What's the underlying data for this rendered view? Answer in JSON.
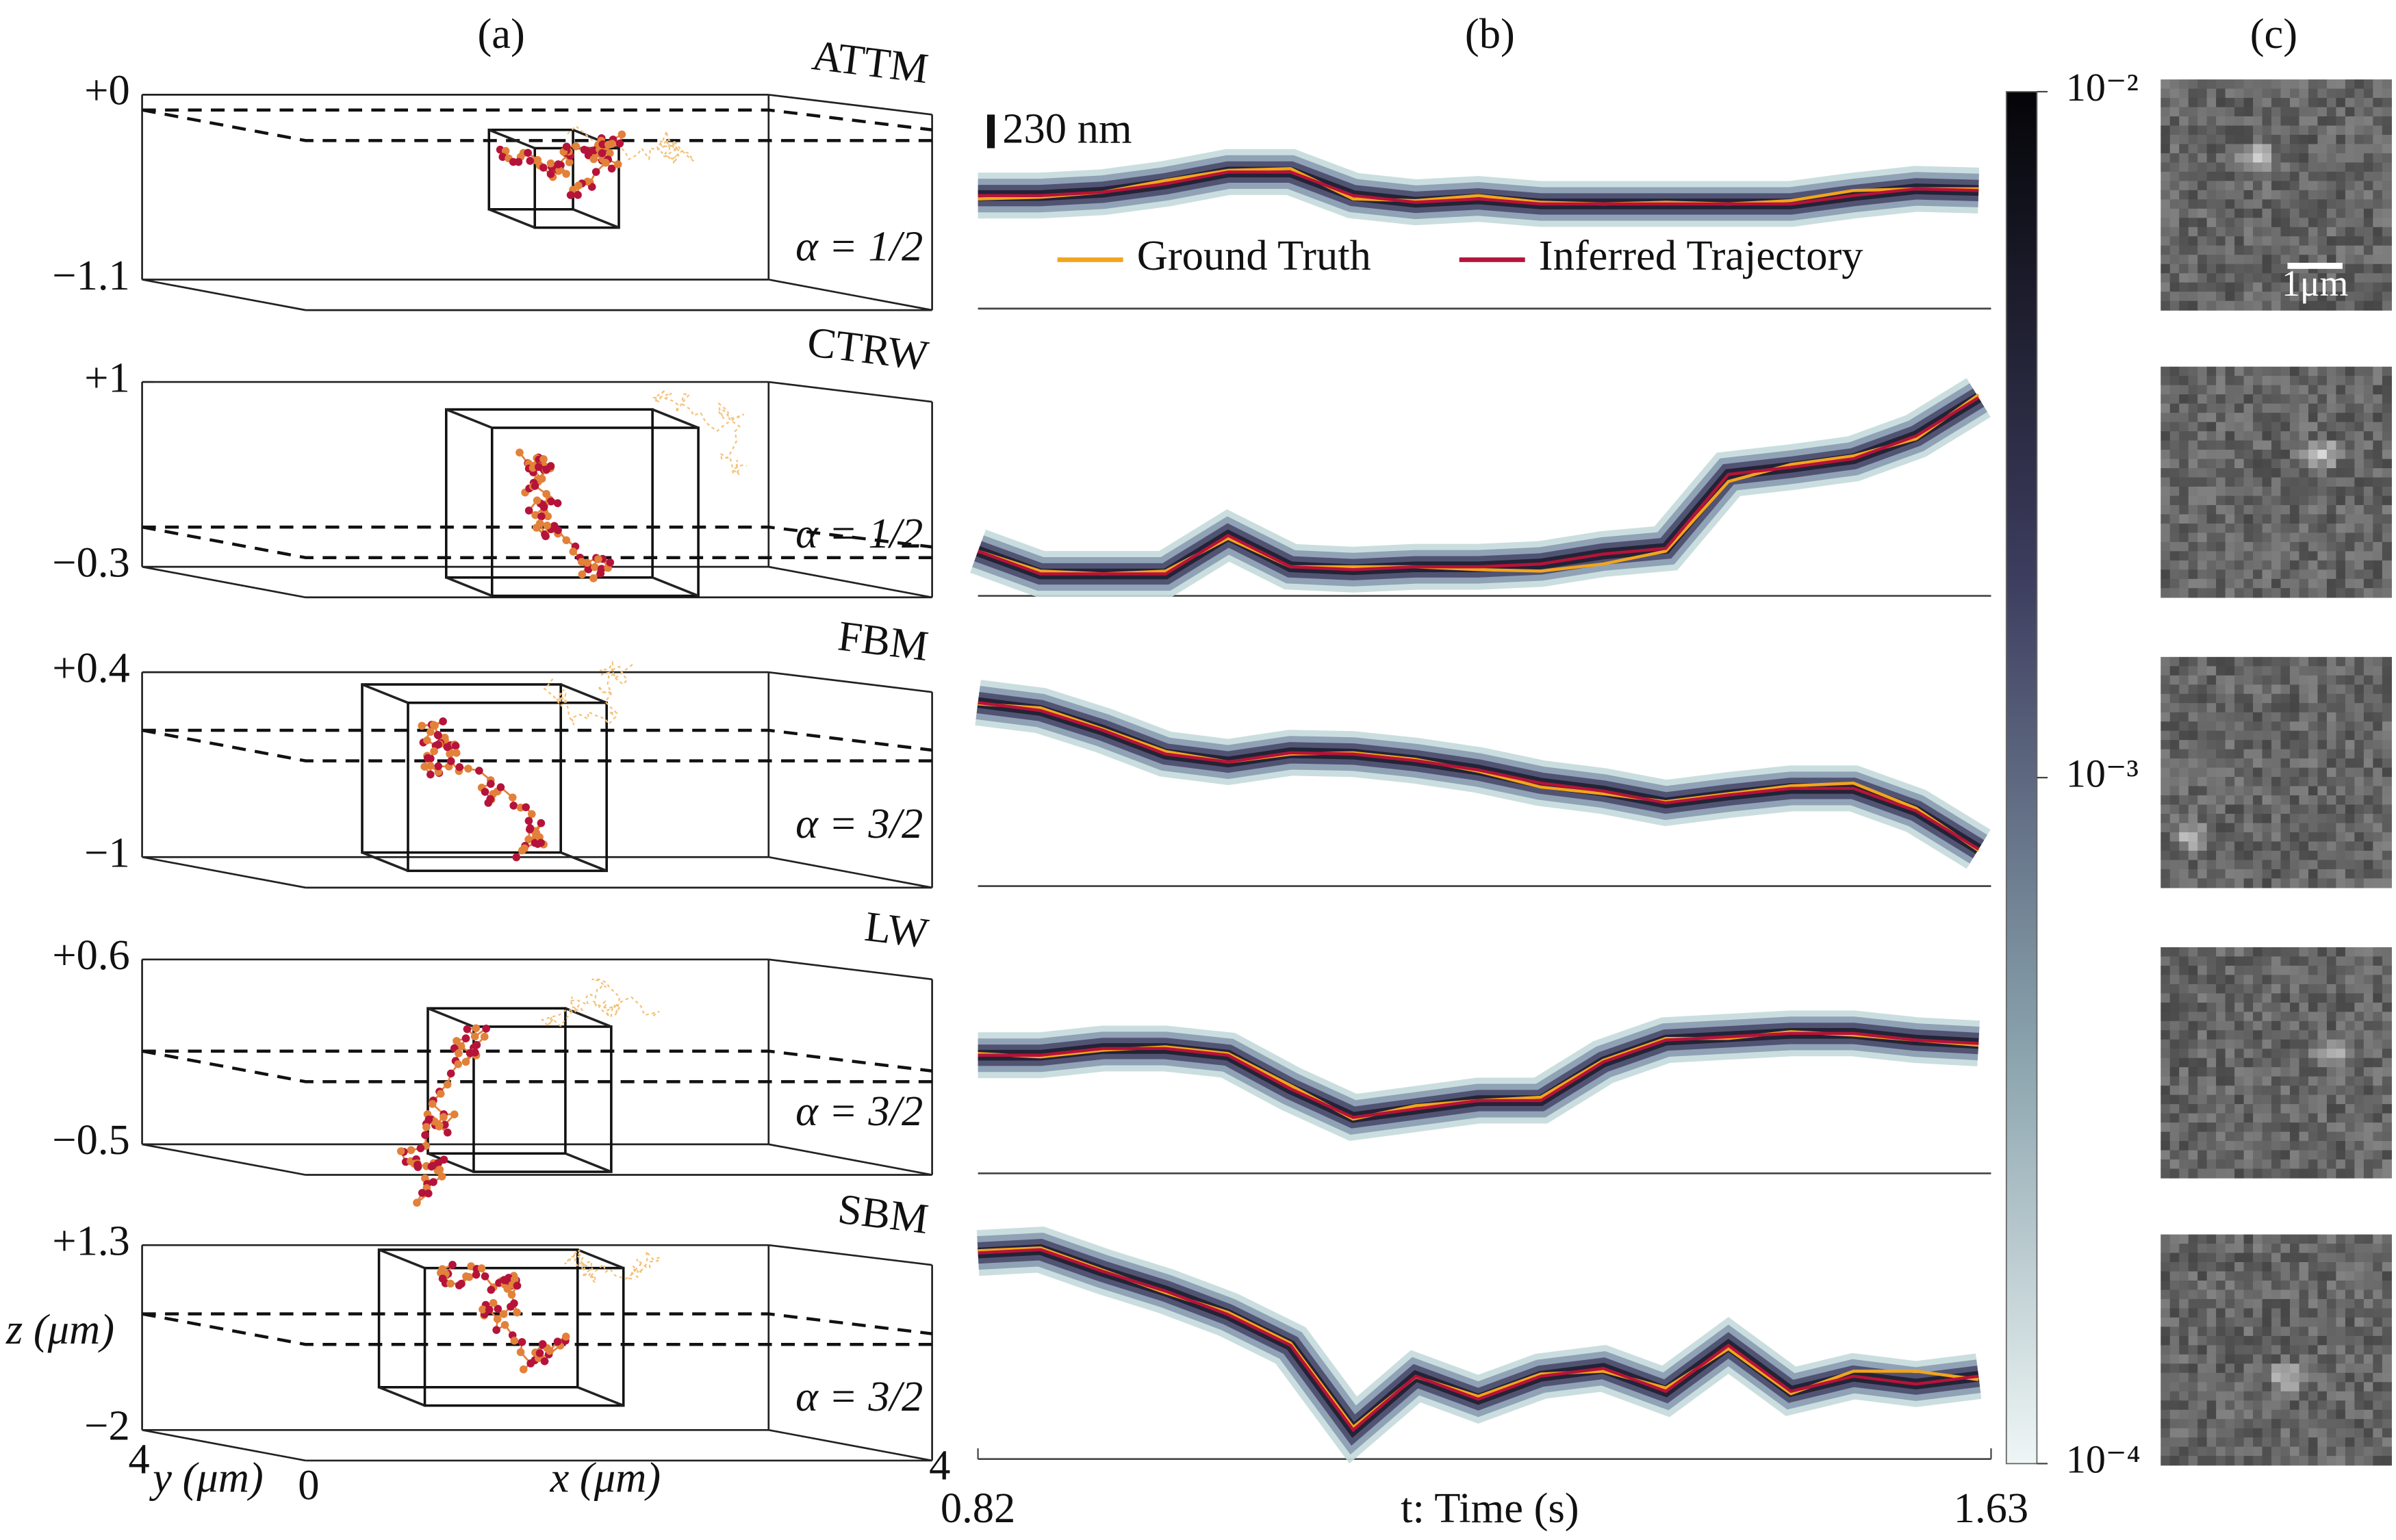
{
  "panel_labels": [
    "(a)",
    "(b)",
    "(c)"
  ],
  "axes_3d": {
    "zlabel": "z (μm)",
    "ylabel": "y (μm)",
    "xlabel": "x (μm)",
    "ytick": "4",
    "xticks": [
      "0",
      "4"
    ]
  },
  "scale_bar": "230 nm",
  "image_scale_bar": "1μm",
  "chart_data": [
    {
      "type": "line",
      "title": "ATTM",
      "annotation": "α = 1/2",
      "x": [
        0.82,
        0.87,
        0.92,
        0.97,
        1.02,
        1.07,
        1.12,
        1.17,
        1.22,
        1.27,
        1.32,
        1.37,
        1.42,
        1.47,
        1.52,
        1.57,
        1.62
      ],
      "xlim": [
        0.82,
        1.63
      ],
      "ylim": [
        -1.1,
        0
      ],
      "yticks": [
        {
          "value": 0,
          "label": "+0"
        },
        {
          "value": -1.1,
          "label": "−1.1"
        }
      ],
      "series": [
        {
          "name": "Ground Truth",
          "color": "#f2a51c",
          "values": [
            -0.62,
            -0.61,
            -0.58,
            -0.51,
            -0.45,
            -0.44,
            -0.62,
            -0.63,
            -0.6,
            -0.64,
            -0.65,
            -0.64,
            -0.65,
            -0.63,
            -0.57,
            -0.56,
            -0.56
          ]
        },
        {
          "name": "Inferred Trajectory",
          "color": "#b5133a",
          "values": [
            -0.6,
            -0.6,
            -0.58,
            -0.53,
            -0.46,
            -0.46,
            -0.6,
            -0.64,
            -0.62,
            -0.65,
            -0.65,
            -0.65,
            -0.65,
            -0.65,
            -0.6,
            -0.56,
            -0.57
          ]
        }
      ]
    },
    {
      "type": "line",
      "title": "CTRW",
      "annotation": "α = 1/2",
      "x": [
        0.82,
        0.87,
        0.92,
        0.97,
        1.02,
        1.07,
        1.12,
        1.17,
        1.22,
        1.27,
        1.32,
        1.37,
        1.42,
        1.47,
        1.52,
        1.57,
        1.62
      ],
      "xlim": [
        0.82,
        1.63
      ],
      "ylim": [
        -0.3,
        1
      ],
      "yticks": [
        {
          "value": 1,
          "label": "+1"
        },
        {
          "value": -0.3,
          "label": "−0.3"
        }
      ],
      "series": [
        {
          "color": "#f2a51c",
          "values": [
            -0.19,
            -0.33,
            -0.35,
            -0.33,
            -0.1,
            -0.3,
            -0.3,
            -0.3,
            -0.32,
            -0.33,
            -0.28,
            -0.19,
            0.3,
            0.42,
            0.48,
            0.6,
            0.91
          ]
        },
        {
          "color": "#b5133a",
          "values": [
            -0.19,
            -0.35,
            -0.35,
            -0.35,
            -0.08,
            -0.3,
            -0.32,
            -0.3,
            -0.3,
            -0.28,
            -0.21,
            -0.17,
            0.35,
            0.4,
            0.46,
            0.62,
            0.89
          ]
        }
      ]
    },
    {
      "type": "line",
      "title": "FBM",
      "annotation": "α = 3/2",
      "x": [
        0.82,
        0.87,
        0.92,
        0.97,
        1.02,
        1.07,
        1.12,
        1.17,
        1.22,
        1.27,
        1.32,
        1.37,
        1.42,
        1.47,
        1.52,
        1.57,
        1.62
      ],
      "xlim": [
        0.82,
        1.63
      ],
      "ylim": [
        -1,
        0.4
      ],
      "yticks": [
        {
          "value": 0.4,
          "label": "+0.4"
        },
        {
          "value": -1,
          "label": "−1"
        }
      ],
      "series": [
        {
          "color": "#f2a51c",
          "values": [
            0.16,
            0.13,
            -0.03,
            -0.2,
            -0.28,
            -0.22,
            -0.21,
            -0.26,
            -0.35,
            -0.47,
            -0.52,
            -0.58,
            -0.52,
            -0.46,
            -0.44,
            -0.63,
            -0.95
          ]
        },
        {
          "color": "#b5133a",
          "values": [
            0.17,
            0.11,
            -0.04,
            -0.22,
            -0.28,
            -0.21,
            -0.22,
            -0.27,
            -0.34,
            -0.44,
            -0.5,
            -0.59,
            -0.53,
            -0.48,
            -0.48,
            -0.65,
            -0.94
          ]
        }
      ]
    },
    {
      "type": "line",
      "title": "LW",
      "annotation": "α = 3/2",
      "x": [
        0.82,
        0.87,
        0.92,
        0.97,
        1.02,
        1.07,
        1.12,
        1.17,
        1.22,
        1.27,
        1.32,
        1.37,
        1.42,
        1.47,
        1.52,
        1.57,
        1.62
      ],
      "xlim": [
        0.82,
        1.63
      ],
      "ylim": [
        -0.5,
        0.6
      ],
      "yticks": [
        {
          "value": 0.6,
          "label": "+0.6"
        },
        {
          "value": -0.5,
          "label": "−0.5"
        }
      ],
      "series": [
        {
          "color": "#f2a51c",
          "values": [
            0.04,
            0.02,
            0.06,
            0.08,
            0.04,
            -0.15,
            -0.35,
            -0.27,
            -0.24,
            -0.22,
            0.0,
            0.13,
            0.13,
            0.17,
            0.15,
            0.12,
            0.09
          ]
        },
        {
          "color": "#b5133a",
          "values": [
            0.03,
            0.03,
            0.07,
            0.07,
            0.03,
            -0.17,
            -0.34,
            -0.29,
            -0.24,
            -0.24,
            -0.01,
            0.12,
            0.14,
            0.16,
            0.16,
            0.12,
            0.1
          ]
        }
      ]
    },
    {
      "type": "line",
      "title": "SBM",
      "annotation": "α = 3/2",
      "x": [
        0.82,
        0.87,
        0.92,
        0.97,
        1.02,
        1.07,
        1.12,
        1.17,
        1.22,
        1.27,
        1.32,
        1.37,
        1.42,
        1.47,
        1.52,
        1.57,
        1.62
      ],
      "xlim": [
        0.82,
        1.63
      ],
      "ylim": [
        -2,
        1.3
      ],
      "yticks": [
        {
          "value": 1.3,
          "label": "+1.3"
        },
        {
          "value": -2,
          "label": "−2"
        }
      ],
      "xticks": [
        0.82,
        1.63
      ],
      "xlabel": "t: Time (s)",
      "series": [
        {
          "color": "#f2a51c",
          "values": [
            1.2,
            1.25,
            0.85,
            0.45,
            0.1,
            -0.45,
            -1.95,
            -1.05,
            -1.4,
            -1.0,
            -0.95,
            -1.25,
            -0.55,
            -1.35,
            -0.95,
            -0.95,
            -1.1
          ]
        },
        {
          "color": "#b5133a",
          "values": [
            1.16,
            1.22,
            0.83,
            0.48,
            0.06,
            -0.49,
            -2.0,
            -1.04,
            -1.45,
            -1.04,
            -0.9,
            -1.31,
            -0.49,
            -1.31,
            -1.04,
            -1.18,
            -1.04
          ]
        }
      ]
    },
    {
      "type": "colorbar",
      "log_scale": true,
      "ylim": [
        0.0001,
        0.01
      ],
      "yticks": [
        {
          "value": 0.01,
          "label": "10⁻²"
        },
        {
          "value": 0.001,
          "label": "10⁻³"
        },
        {
          "value": 0.0001,
          "label": "10⁻⁴"
        }
      ]
    }
  ]
}
